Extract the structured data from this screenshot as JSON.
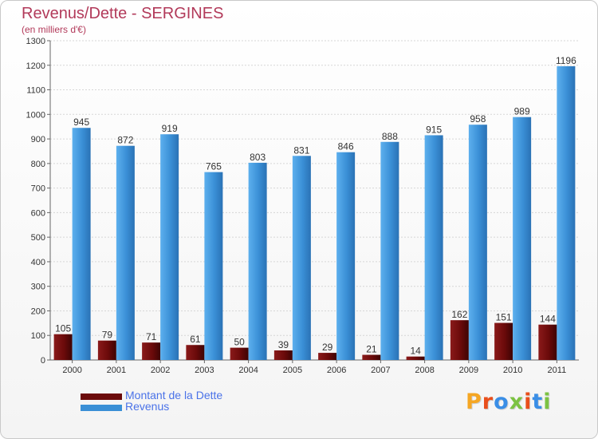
{
  "title": "Revenus/Dette - SERGINES",
  "subtitle": "(en milliers d'€)",
  "logo": {
    "text": "Proxiti",
    "colors": [
      "#f5a623",
      "#e94e1b",
      "#3a8ee6",
      "#7cc242",
      "#e94e1b",
      "#3a8ee6",
      "#7cc242"
    ]
  },
  "legend": [
    {
      "label": "Montant de la Dette",
      "color": "#6b0a0a"
    },
    {
      "label": "Revenus",
      "color": "#3a8fd6"
    }
  ],
  "chart_data": {
    "type": "bar",
    "title": "Revenus/Dette - SERGINES",
    "subtitle": "(en milliers d'€)",
    "categories": [
      "2000",
      "2001",
      "2002",
      "2003",
      "2004",
      "2005",
      "2006",
      "2007",
      "2008",
      "2009",
      "2010",
      "2011"
    ],
    "series": [
      {
        "name": "Montant de la Dette",
        "color": "#6b0a0a",
        "values": [
          105,
          79,
          71,
          61,
          50,
          39,
          29,
          21,
          14,
          162,
          151,
          144
        ]
      },
      {
        "name": "Revenus",
        "color": "#3a8fd6",
        "values": [
          945,
          872,
          919,
          765,
          803,
          831,
          846,
          888,
          915,
          958,
          989,
          1196
        ]
      }
    ],
    "ylim": [
      0,
      1300
    ],
    "yticks": [
      0,
      100,
      200,
      300,
      400,
      500,
      600,
      700,
      800,
      900,
      1000,
      1100,
      1200,
      1300
    ],
    "grid": true,
    "legend_position": "bottom-left"
  }
}
